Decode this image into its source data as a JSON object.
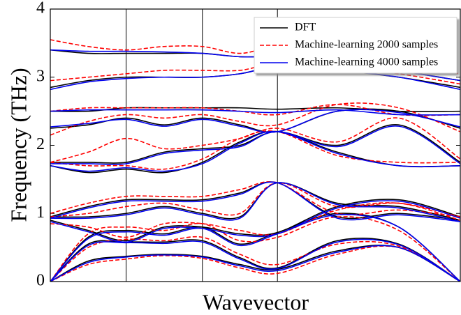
{
  "chart_data": {
    "type": "line",
    "ylabel": "Frequency (THz)",
    "xlabel": "Wavevector",
    "xlim": [
      0,
      1
    ],
    "ylim": [
      0,
      4
    ],
    "yticks": [
      0,
      1,
      2,
      3,
      4
    ],
    "xlines": [
      0.185,
      0.371,
      0.554
    ],
    "legend": "upper right",
    "x": [
      0,
      0.0925,
      0.185,
      0.278,
      0.371,
      0.4625,
      0.554,
      0.7,
      0.85,
      1.0
    ],
    "series": [
      {
        "name": "DFT",
        "color": "#000000",
        "linestyle": "solid",
        "bands": [
          [
            0,
            0.3,
            0.37,
            0.4,
            0.37,
            0.25,
            0.18,
            0.45,
            0.5,
            0
          ],
          [
            0,
            0.55,
            0.58,
            0.58,
            0.6,
            0.35,
            0.2,
            0.6,
            0.55,
            0
          ],
          [
            0,
            0.65,
            0.75,
            0.7,
            0.8,
            0.55,
            0.72,
            1.0,
            0.8,
            0
          ],
          [
            0.9,
            0.75,
            0.6,
            0.8,
            0.8,
            0.7,
            0.72,
            1.1,
            1.2,
            0.95
          ],
          [
            0.95,
            0.95,
            1.0,
            1.1,
            1.0,
            0.95,
            1.45,
            1.15,
            1.1,
            0.9
          ],
          [
            0.95,
            1.1,
            1.2,
            1.2,
            1.2,
            1.3,
            1.45,
            0.95,
            1.0,
            0.9
          ],
          [
            1.7,
            1.6,
            1.65,
            1.6,
            1.75,
            2.05,
            2.2,
            1.9,
            1.7,
            1.7
          ],
          [
            1.75,
            1.75,
            1.75,
            1.9,
            1.95,
            2.0,
            2.2,
            2.0,
            2.3,
            1.75
          ],
          [
            2.25,
            2.3,
            2.4,
            2.3,
            2.4,
            2.3,
            2.2,
            2.5,
            2.5,
            2.25
          ],
          [
            2.5,
            2.5,
            2.55,
            2.55,
            2.55,
            2.55,
            2.53,
            2.55,
            2.5,
            2.5
          ],
          [
            2.85,
            2.95,
            3.0,
            3.0,
            3.0,
            3.05,
            3.15,
            3.1,
            3.0,
            2.85
          ],
          [
            3.4,
            3.35,
            3.35,
            3.35,
            3.35,
            3.3,
            3.3,
            3.25,
            3.1,
            2.95
          ]
        ]
      },
      {
        "name": "Machine-learning 2000 samples",
        "color": "#ff0000",
        "linestyle": "dashed",
        "bands": [
          [
            0,
            0.25,
            0.33,
            0.38,
            0.34,
            0.2,
            0.12,
            0.4,
            0.5,
            0
          ],
          [
            0,
            0.5,
            0.62,
            0.6,
            0.65,
            0.4,
            0.25,
            0.55,
            0.52,
            0
          ],
          [
            0,
            0.7,
            0.8,
            0.75,
            0.85,
            0.6,
            0.65,
            0.95,
            0.75,
            0
          ],
          [
            0.85,
            0.8,
            0.65,
            0.85,
            0.85,
            0.75,
            0.7,
            1.05,
            1.15,
            0.9
          ],
          [
            0.95,
            1.0,
            1.1,
            1.15,
            1.05,
            1.0,
            1.45,
            1.1,
            1.15,
            0.95
          ],
          [
            1.0,
            1.15,
            1.25,
            1.25,
            1.25,
            1.35,
            1.45,
            1.0,
            1.05,
            0.95
          ],
          [
            1.75,
            1.7,
            1.7,
            1.65,
            1.8,
            2.1,
            2.2,
            1.85,
            1.75,
            1.75
          ],
          [
            1.75,
            1.9,
            2.1,
            1.95,
            2.0,
            2.1,
            2.25,
            2.05,
            2.4,
            1.8
          ],
          [
            2.15,
            2.35,
            2.45,
            2.4,
            2.45,
            2.35,
            2.3,
            2.6,
            2.55,
            2.2
          ],
          [
            2.5,
            2.55,
            2.55,
            2.55,
            2.55,
            2.5,
            2.45,
            2.6,
            2.45,
            2.45
          ],
          [
            2.95,
            3.0,
            3.05,
            3.1,
            3.1,
            3.1,
            3.2,
            3.15,
            3.05,
            2.9
          ],
          [
            3.55,
            3.45,
            3.4,
            3.45,
            3.45,
            3.35,
            3.45,
            3.4,
            3.2,
            3.05
          ]
        ]
      },
      {
        "name": "Machine-learning 4000 samples",
        "color": "#0000ee",
        "linestyle": "solid",
        "bands": [
          [
            0,
            0.28,
            0.36,
            0.39,
            0.36,
            0.23,
            0.16,
            0.43,
            0.5,
            0
          ],
          [
            0,
            0.53,
            0.57,
            0.56,
            0.58,
            0.33,
            0.19,
            0.58,
            0.54,
            0
          ],
          [
            0,
            0.63,
            0.73,
            0.68,
            0.78,
            0.53,
            0.7,
            0.98,
            0.8,
            0
          ],
          [
            0.88,
            0.73,
            0.58,
            0.78,
            0.78,
            0.68,
            0.7,
            1.08,
            1.18,
            0.93
          ],
          [
            0.93,
            0.93,
            0.98,
            1.08,
            0.98,
            0.93,
            1.45,
            1.13,
            1.08,
            0.88
          ],
          [
            0.93,
            1.08,
            1.18,
            1.18,
            1.18,
            1.28,
            1.45,
            0.93,
            0.98,
            0.88
          ],
          [
            1.7,
            1.62,
            1.67,
            1.62,
            1.73,
            2.03,
            2.2,
            1.88,
            1.7,
            1.7
          ],
          [
            1.73,
            1.73,
            1.73,
            1.88,
            1.93,
            1.98,
            2.2,
            1.98,
            2.28,
            1.73
          ],
          [
            2.27,
            2.32,
            2.38,
            2.28,
            2.38,
            2.28,
            2.2,
            2.5,
            2.48,
            2.27
          ],
          [
            2.5,
            2.52,
            2.52,
            2.52,
            2.52,
            2.5,
            2.48,
            2.52,
            2.45,
            2.45
          ],
          [
            2.82,
            2.93,
            2.98,
            3.0,
            3.0,
            3.05,
            3.15,
            3.1,
            3.0,
            2.82
          ],
          [
            3.4,
            3.38,
            3.38,
            3.37,
            3.35,
            3.3,
            3.3,
            3.28,
            3.1,
            2.95
          ]
        ]
      }
    ]
  }
}
